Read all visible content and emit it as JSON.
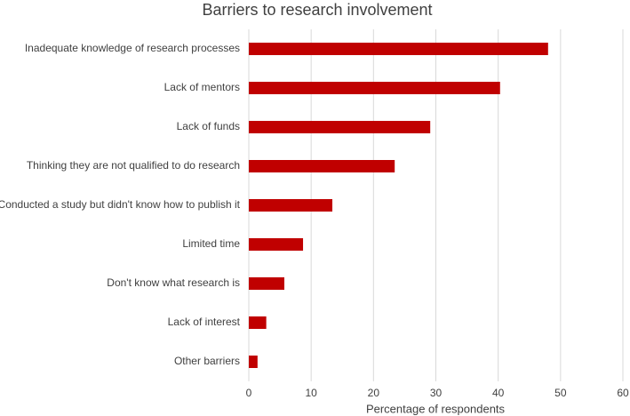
{
  "chart_data": {
    "type": "bar",
    "orientation": "horizontal",
    "title": "Barriers to research involvement",
    "x_label": "Percentage of respondents",
    "categories": [
      "Inadequate knowledge of research processes",
      "Lack of mentors",
      "Lack of funds",
      "Thinking they are not qualified to do research",
      "Conducted a study but didn't know how to publish it",
      "Limited time",
      "Don't know what research is",
      "Lack of interest",
      "Other barriers"
    ],
    "values": [
      48.0,
      40.3,
      29.1,
      23.4,
      13.4,
      8.7,
      5.7,
      2.8,
      1.4
    ],
    "color": "#c00000",
    "xlim": [
      0,
      60
    ],
    "xticks": [
      0,
      10,
      20,
      30,
      40,
      50,
      60
    ],
    "grid": true
  }
}
